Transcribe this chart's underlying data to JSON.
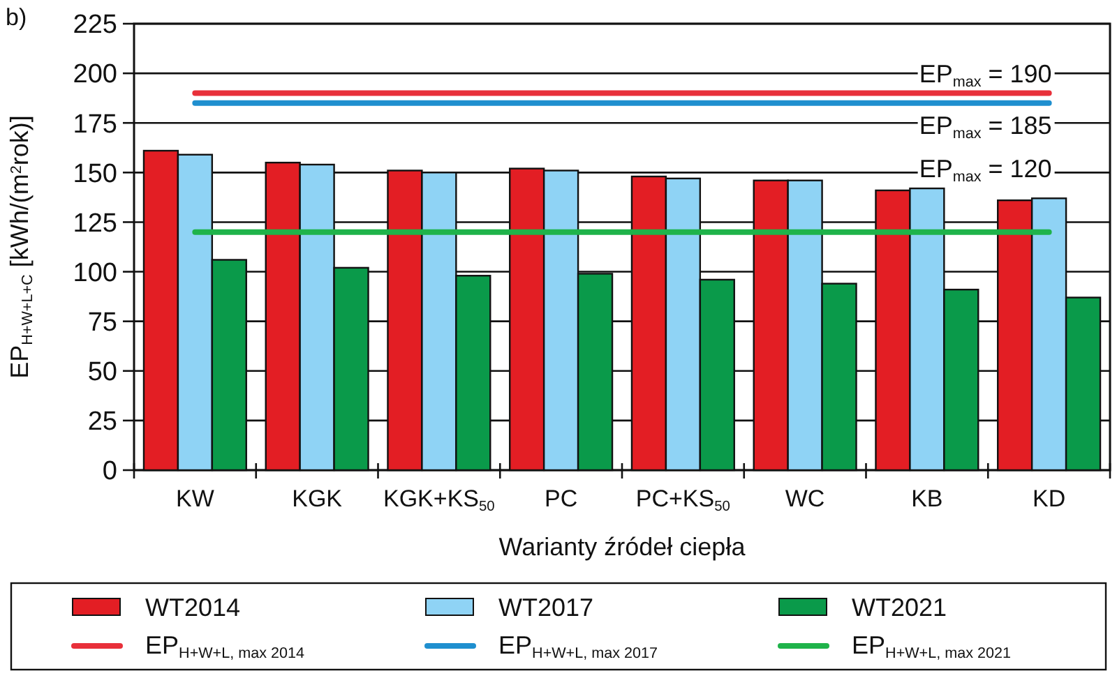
{
  "chart_data": {
    "type": "bar",
    "xlabel": "Warianty źródeł ciepła",
    "ylabel": "EP$_{H+W+L+C}$ [kWh/(m$^{2}$rok)]",
    "categories": [
      "KW",
      "KGK",
      "KGK+KS$_{50}$",
      "PC",
      "PC+KS$_{50}$",
      "WC",
      "KB",
      "KD"
    ],
    "series": [
      {
        "name": "WT2014",
        "color": "#e31e24",
        "values": [
          161,
          155,
          151,
          152,
          148,
          146,
          141,
          136
        ]
      },
      {
        "name": "WT2017",
        "color": "#8fd3f5",
        "values": [
          159,
          154,
          150,
          151,
          147,
          146,
          142,
          137
        ]
      },
      {
        "name": "WT2021",
        "color": "#0a9a4a",
        "values": [
          106,
          102,
          98,
          99,
          96,
          94,
          91,
          87
        ]
      },
      {
        "name": "EP$_{H+W+L, max 2014}$",
        "type": "line",
        "color": "#e8303a",
        "values": [
          190,
          190,
          190,
          190,
          190,
          190,
          190,
          190
        ]
      },
      {
        "name": "EP$_{H+W+L, max 2017}$",
        "type": "line",
        "color": "#1f8fcf",
        "values": [
          185,
          185,
          185,
          185,
          185,
          185,
          185,
          185
        ]
      },
      {
        "name": "EP$_{H+W+L, max 2021}$",
        "type": "line",
        "color": "#1fb34a",
        "values": [
          120,
          120,
          120,
          120,
          120,
          120,
          120,
          120
        ]
      }
    ],
    "ylim": [
      0,
      225
    ],
    "yticks": [
      0,
      25,
      50,
      75,
      100,
      125,
      150,
      175,
      200,
      225
    ],
    "grid": "y",
    "legend": "bottom",
    "marker": "none",
    "annotations": [
      "b)",
      {
        "text": "EP$_{max}$ = 190",
        "x": "KD",
        "y": 190
      },
      {
        "text": "EP$_{max}$ = 185",
        "x": "KD",
        "y": 185
      },
      {
        "text": "EP$_{max}$ = 120",
        "x": "KD",
        "y": 120
      }
    ]
  }
}
